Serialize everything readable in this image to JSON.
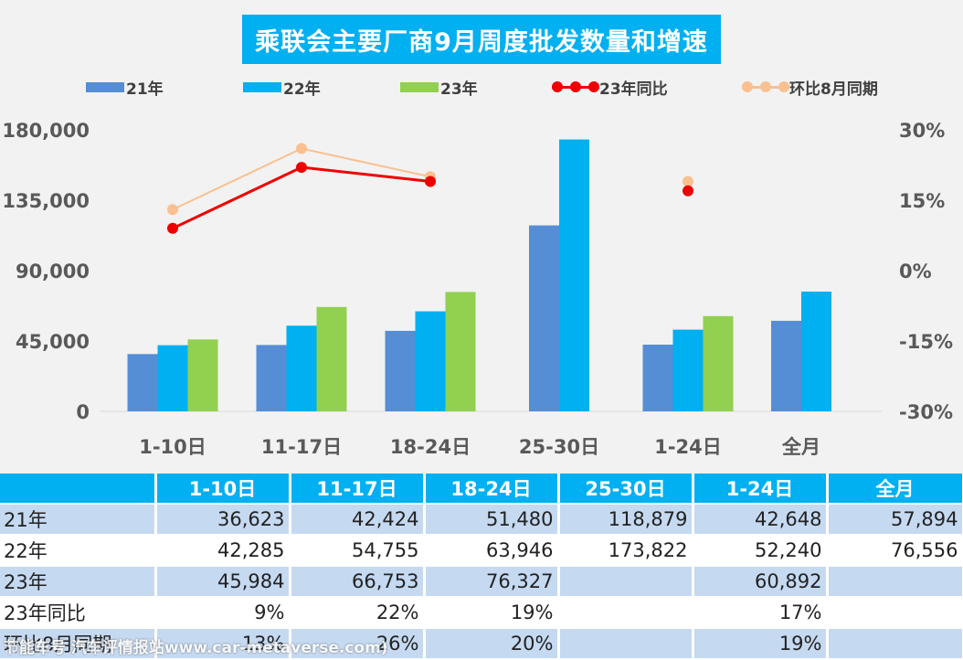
{
  "title": "乘联会主要厂商9月周度批发数量和增速",
  "legend": [
    "21年",
    "22年",
    "23年",
    "23年同比",
    "环比8月同期"
  ],
  "colors": {
    "y21": "#558ed5",
    "y22": "#00b0f0",
    "y23": "#92d050",
    "yoy": "#ee0000",
    "mom": "#fac090",
    "header": "#00b0f0",
    "band": "#c5d9f1"
  },
  "chart_data": {
    "type": "bar",
    "categories": [
      "1-10日",
      "11-17日",
      "18-24日",
      "25-30日",
      "1-24日",
      "全月"
    ],
    "series": [
      {
        "name": "21年",
        "type": "bar",
        "axis": "left",
        "values": [
          36623,
          42424,
          51480,
          118879,
          42648,
          57894
        ]
      },
      {
        "name": "22年",
        "type": "bar",
        "axis": "left",
        "values": [
          42285,
          54755,
          63946,
          173822,
          52240,
          76556
        ]
      },
      {
        "name": "23年",
        "type": "bar",
        "axis": "left",
        "values": [
          45984,
          66753,
          76327,
          null,
          60892,
          null
        ]
      },
      {
        "name": "23年同比",
        "type": "line",
        "axis": "right",
        "values": [
          0.09,
          0.22,
          0.19,
          null,
          0.17,
          null
        ]
      },
      {
        "name": "环比8月同期",
        "type": "line",
        "axis": "right",
        "values": [
          0.13,
          0.26,
          0.2,
          null,
          0.19,
          null
        ]
      }
    ],
    "y_left": {
      "ylim": [
        0,
        180000
      ],
      "ticks": [
        "180,000",
        "135,000",
        "90,000",
        "45,000",
        "0"
      ]
    },
    "y_right": {
      "ylim": [
        -0.3,
        0.3
      ],
      "ticks": [
        "30%",
        "15%",
        "0%",
        "-15%",
        "-30%"
      ]
    },
    "grid": false,
    "legend_position": "top"
  },
  "table": {
    "headers": [
      "",
      "1-10日",
      "11-17日",
      "18-24日",
      "25-30日",
      "1-24日",
      "全月"
    ],
    "rows": [
      {
        "label": "21年",
        "cells": [
          "36,623",
          "42,424",
          "51,480",
          "118,879",
          "42,648",
          "57,894"
        ]
      },
      {
        "label": "22年",
        "cells": [
          "42,285",
          "54,755",
          "63,946",
          "173,822",
          "52,240",
          "76,556"
        ]
      },
      {
        "label": "23年",
        "cells": [
          "45,984",
          "66,753",
          "76,327",
          "",
          "60,892",
          ""
        ]
      },
      {
        "label": "23年同比",
        "cells": [
          "9%",
          "22%",
          "19%",
          "",
          "17%",
          ""
        ]
      },
      {
        "label": "环比8月同期",
        "cells": [
          "13%",
          "26%",
          "20%",
          "",
          "19%",
          ""
        ]
      }
    ]
  },
  "watermark": "节能车号 汽车评情报站www.car-metaverse.com)"
}
